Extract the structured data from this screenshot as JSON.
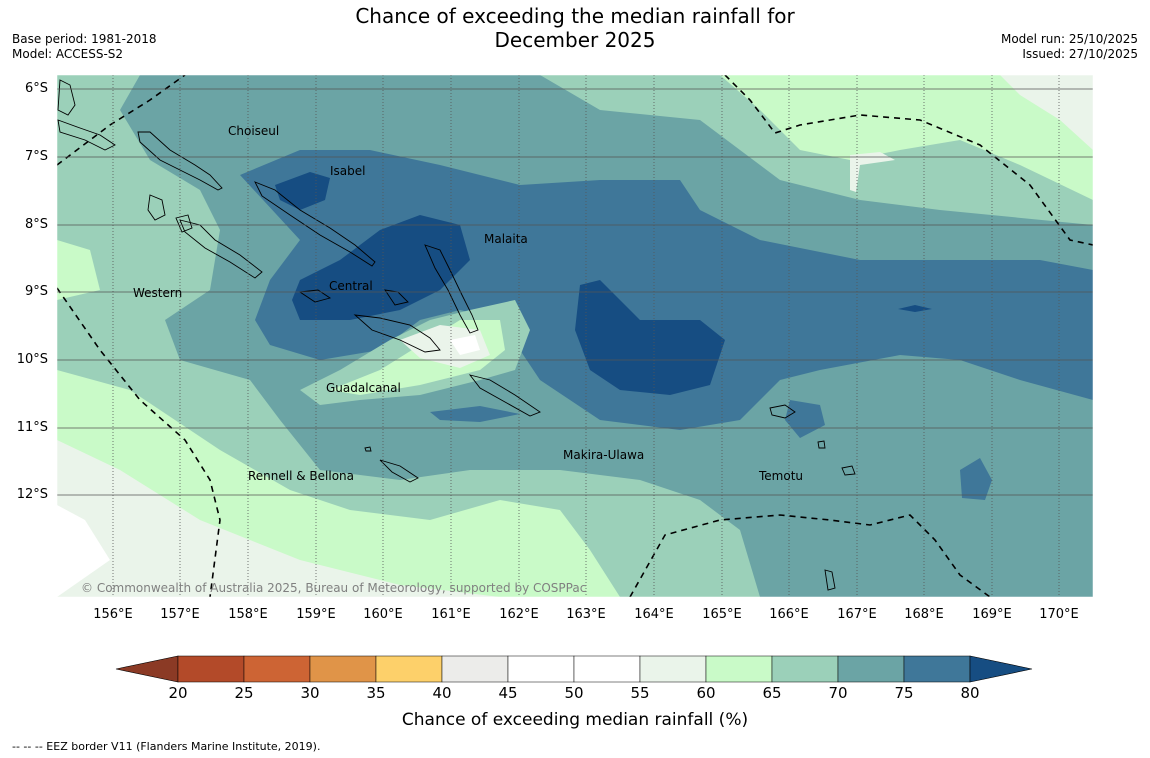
{
  "title_line1": "Chance of exceeding the median rainfall for",
  "title_line2": "December 2025",
  "meta_left": {
    "base_period": "Base period: 1981-2018",
    "model": "Model: ACCESS-S2"
  },
  "meta_right": {
    "model_run": "Model run: 25/10/2025",
    "issued": "Issued: 27/10/2025"
  },
  "copyright": "© Commonwealth of Australia 2025, Bureau of Meteorology, supported by COSPPac",
  "lat_ticks": [
    "6°S",
    "7°S",
    "8°S",
    "9°S",
    "10°S",
    "11°S",
    "12°S"
  ],
  "lon_ticks": [
    "156°E",
    "157°E",
    "158°E",
    "159°E",
    "160°E",
    "161°E",
    "162°E",
    "163°E",
    "164°E",
    "165°E",
    "166°E",
    "167°E",
    "168°E",
    "169°E",
    "170°E"
  ],
  "regions": [
    "Choiseul",
    "Isabel",
    "Malaita",
    "Western",
    "Central",
    "Guadalcanal",
    "Makira-Ulawa",
    "Rennell & Bellona",
    "Temotu"
  ],
  "colorbar": {
    "title": "Chance of exceeding median rainfall (%)",
    "ticks": [
      "20",
      "25",
      "30",
      "35",
      "40",
      "45",
      "50",
      "55",
      "60",
      "65",
      "70",
      "75",
      "80"
    ],
    "colors": [
      "#8b3a25",
      "#b34a29",
      "#cd6434",
      "#e09448",
      "#fdd06a",
      "#ececea",
      "#ffffff",
      "#ffffff",
      "#eaf4ea",
      "#c9fac8",
      "#9bd0b9",
      "#6ba4a5",
      "#3f7799",
      "#164d82"
    ]
  },
  "footnote": "--  --  -- EEZ border V11 (Flanders Marine Institute, 2019)."
}
